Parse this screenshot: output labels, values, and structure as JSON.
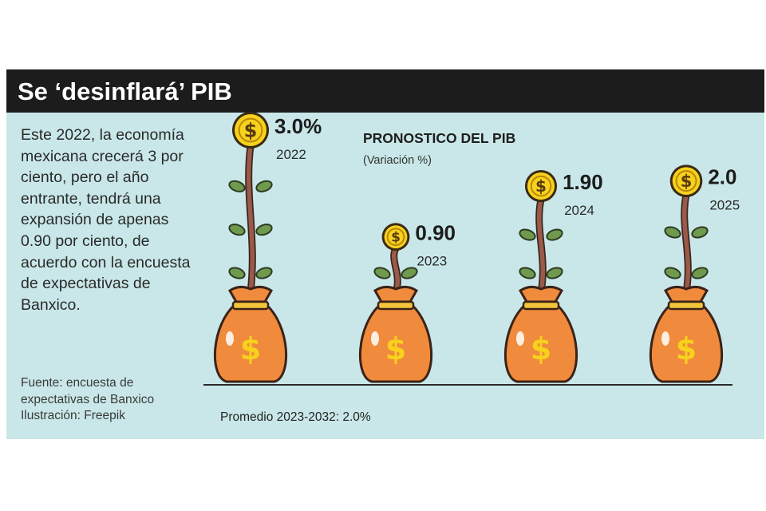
{
  "header": {
    "title": "Se ‘desinflará’ PIB"
  },
  "body_text": "Este 2022, la economía mexicana crecerá 3 por ciento, pero el año entrante, tendrá una expansión de apenas 0.90 por ciento, de acuerdo con la encuesta de expectativas de Banxico.",
  "source": {
    "line1": "Fuente: encuesta de",
    "line2": "expectativas de Banxico",
    "line3": "Ilustración: Freepik"
  },
  "colors": {
    "panel": "#c9e7e9",
    "header": "#1c1c1c",
    "bag": "#f08a3c",
    "coin": "#f7d21c",
    "stem": "#9a5a48",
    "leaf": "#6f9a4d"
  },
  "icons": [
    "money-bag-icon",
    "dollar-coin-icon",
    "plant-stem-icon"
  ],
  "chart_data": {
    "type": "bar",
    "title": "PRONOSTICO DEL PIB",
    "subtitle": "(Variación %)",
    "categories": [
      "2022",
      "2023",
      "2024",
      "2025"
    ],
    "values": [
      3.0,
      0.9,
      1.9,
      2.0
    ],
    "value_labels": [
      "3.0%",
      "0.90",
      "1.90",
      "2.0"
    ],
    "annotation": "Promedio 2023-2032: 2.0%"
  }
}
